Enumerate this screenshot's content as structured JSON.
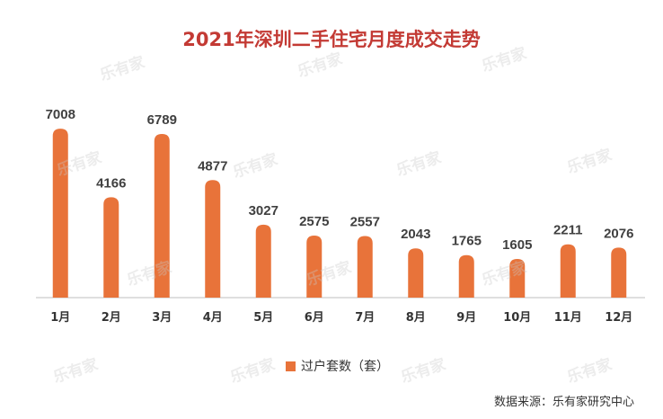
{
  "colors": {
    "bar": "#e8733a",
    "title": "#c33a34",
    "axis": "#bfbfbf"
  },
  "watermark": "乐有家",
  "source": "数据来源：乐有家研究中心",
  "chart_data": {
    "type": "bar",
    "title": "2021年深圳二手住宅月度成交走势",
    "categories": [
      "1月",
      "2月",
      "3月",
      "4月",
      "5月",
      "6月",
      "7月",
      "8月",
      "9月",
      "10月",
      "11月",
      "12月"
    ],
    "series": [
      {
        "name": "过户套数（套）",
        "values": [
          7008,
          4166,
          6789,
          4877,
          3027,
          2575,
          2557,
          2043,
          1765,
          1605,
          2211,
          2076
        ]
      }
    ],
    "data_labels": true,
    "legend_position": "bottom",
    "grid": false,
    "ylim": [
      0,
      7500
    ]
  }
}
